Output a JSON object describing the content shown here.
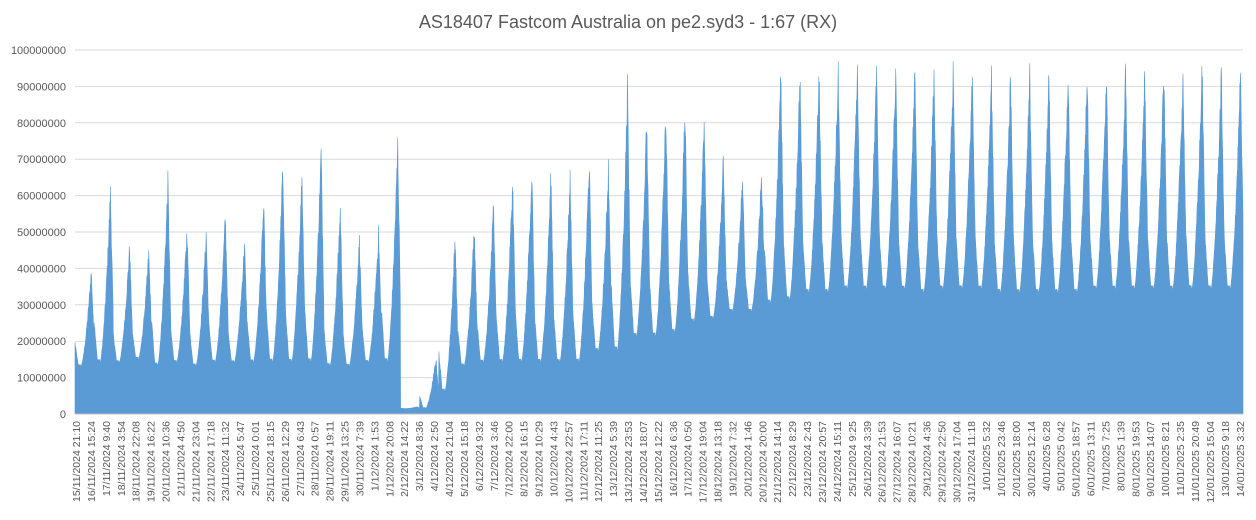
{
  "chart_data": {
    "type": "area",
    "title": "AS18407 Fastcom Australia on pe2.syd3 - 1:67 (RX)",
    "xlabel": "",
    "ylabel": "",
    "ylim": [
      0,
      100000000
    ],
    "y_ticks": [
      "0",
      "10000000",
      "20000000",
      "30000000",
      "40000000",
      "50000000",
      "60000000",
      "70000000",
      "80000000",
      "90000000",
      "100000000"
    ],
    "x_tick_labels": [
      "15/11/2024 21:10",
      "16/11/2024 15:24",
      "17/11/2024 9:40",
      "18/11/2024 3:54",
      "18/11/2024 22:08",
      "19/11/2024 16:22",
      "20/11/2024 10:36",
      "21/11/2024 4:50",
      "21/11/2024 23:04",
      "22/11/2024 17:18",
      "23/11/2024 11:32",
      "24/11/2024 5:47",
      "25/11/2024 0:01",
      "25/11/2024 18:15",
      "26/11/2024 12:29",
      "27/11/2024 6:43",
      "28/11/2024 0:57",
      "28/11/2024 19:11",
      "29/11/2024 13:25",
      "30/11/2024 7:39",
      "1/12/2024 1:53",
      "1/12/2024 20:08",
      "2/12/2024 14:22",
      "3/12/2024 8:36",
      "4/12/2024 2:50",
      "4/12/2024 21:04",
      "5/12/2024 15:18",
      "6/12/2024 9:32",
      "7/12/2024 3:46",
      "7/12/2024 22:00",
      "8/12/2024 16:15",
      "9/12/2024 10:29",
      "10/12/2024 4:43",
      "10/12/2024 22:57",
      "11/12/2024 17:11",
      "12/12/2024 11:25",
      "13/12/2024 5:39",
      "13/12/2024 23:53",
      "14/12/2024 18:07",
      "15/12/2024 12:22",
      "16/12/2024 6:36",
      "17/12/2024 0:50",
      "17/12/2024 19:04",
      "18/12/2024 13:18",
      "19/12/2024 7:32",
      "20/12/2024 1:46",
      "20/12/2024 20:00",
      "21/12/2024 14:14",
      "22/12/2024 8:29",
      "23/12/2024 2:43",
      "23/12/2024 20:57",
      "24/12/2024 15:11",
      "25/12/2024 9:25",
      "26/12/2024 3:39",
      "26/12/2024 21:53",
      "27/12/2024 16:07",
      "28/12/2024 10:21",
      "29/12/2024 4:36",
      "29/12/2024 22:50",
      "30/12/2024 17:04",
      "31/12/2024 11:18",
      "1/01/2025 5:32",
      "1/01/2025 23:46",
      "2/01/2025 18:00",
      "3/01/2025 12:14",
      "4/01/2025 6:28",
      "5/01/2025 0:42",
      "5/01/2025 18:57",
      "6/01/2025 13:11",
      "7/01/2025 7:25",
      "8/01/2025 1:39",
      "8/01/2025 19:53",
      "9/01/2025 14:07",
      "10/01/2025 8:21",
      "11/01/2025 2:35",
      "11/01/2025 20:49",
      "12/01/2025 15:04",
      "13/01/2025 9:18",
      "14/01/2025 3:32"
    ],
    "daily_profile": [
      {
        "day": 1,
        "min": 13000000,
        "max": 41000000
      },
      {
        "day": 2,
        "min": 14000000,
        "max": 64000000
      },
      {
        "day": 3,
        "min": 14000000,
        "max": 48000000
      },
      {
        "day": 4,
        "min": 15000000,
        "max": 46000000
      },
      {
        "day": 5,
        "min": 13000000,
        "max": 67000000
      },
      {
        "day": 6,
        "min": 14000000,
        "max": 53000000
      },
      {
        "day": 7,
        "min": 13000000,
        "max": 52000000
      },
      {
        "day": 8,
        "min": 14000000,
        "max": 57000000
      },
      {
        "day": 9,
        "min": 14000000,
        "max": 49000000
      },
      {
        "day": 10,
        "min": 14000000,
        "max": 60000000
      },
      {
        "day": 11,
        "min": 14000000,
        "max": 71000000
      },
      {
        "day": 12,
        "min": 14000000,
        "max": 69000000
      },
      {
        "day": 13,
        "min": 14000000,
        "max": 76000000
      },
      {
        "day": 14,
        "min": 13000000,
        "max": 59000000
      },
      {
        "day": 15,
        "min": 13000000,
        "max": 50000000
      },
      {
        "day": 16,
        "min": 14000000,
        "max": 52000000
      },
      {
        "day": 17,
        "min": 14000000,
        "max": 78000000
      },
      {
        "day": 18,
        "min": 1500000,
        "max": 2000000
      },
      {
        "day": 19,
        "min": 1500000,
        "max": 16000000
      },
      {
        "day": 20,
        "min": 6000000,
        "max": 52000000
      },
      {
        "day": 21,
        "min": 13000000,
        "max": 54000000
      },
      {
        "day": 22,
        "min": 14000000,
        "max": 59000000
      },
      {
        "day": 23,
        "min": 14000000,
        "max": 67000000
      },
      {
        "day": 24,
        "min": 14000000,
        "max": 70000000
      },
      {
        "day": 25,
        "min": 14000000,
        "max": 69000000
      },
      {
        "day": 26,
        "min": 14000000,
        "max": 68000000
      },
      {
        "day": 27,
        "min": 14000000,
        "max": 73000000
      },
      {
        "day": 28,
        "min": 17000000,
        "max": 71000000
      },
      {
        "day": 29,
        "min": 17000000,
        "max": 94000000
      },
      {
        "day": 30,
        "min": 21000000,
        "max": 84000000
      },
      {
        "day": 31,
        "min": 21000000,
        "max": 87000000
      },
      {
        "day": 32,
        "min": 22000000,
        "max": 87000000
      },
      {
        "day": 33,
        "min": 25000000,
        "max": 83000000
      },
      {
        "day": 34,
        "min": 26000000,
        "max": 72000000
      },
      {
        "day": 35,
        "min": 28000000,
        "max": 67000000
      },
      {
        "day": 36,
        "min": 28000000,
        "max": 68000000
      },
      {
        "day": 37,
        "min": 30000000,
        "max": 97000000
      },
      {
        "day": 38,
        "min": 31000000,
        "max": 97000000
      },
      {
        "day": 39,
        "min": 33000000,
        "max": 97000000
      },
      {
        "day": 40,
        "min": 33000000,
        "max": 97000000
      },
      {
        "day": 41,
        "min": 34000000,
        "max": 97000000
      },
      {
        "day": 42,
        "min": 34000000,
        "max": 97000000
      },
      {
        "day": 43,
        "min": 34000000,
        "max": 97000000
      },
      {
        "day": 44,
        "min": 34000000,
        "max": 97000000
      },
      {
        "day": 45,
        "min": 33000000,
        "max": 97000000
      },
      {
        "day": 46,
        "min": 34000000,
        "max": 97000000
      },
      {
        "day": 47,
        "min": 34000000,
        "max": 97000000
      },
      {
        "day": 48,
        "min": 34000000,
        "max": 97000000
      },
      {
        "day": 49,
        "min": 33000000,
        "max": 97000000
      },
      {
        "day": 50,
        "min": 33000000,
        "max": 97000000
      },
      {
        "day": 51,
        "min": 33000000,
        "max": 97000000
      },
      {
        "day": 52,
        "min": 33000000,
        "max": 97000000
      },
      {
        "day": 53,
        "min": 33000000,
        "max": 97000000
      },
      {
        "day": 54,
        "min": 34000000,
        "max": 97000000
      },
      {
        "day": 55,
        "min": 34000000,
        "max": 97000000
      },
      {
        "day": 56,
        "min": 34000000,
        "max": 97000000
      },
      {
        "day": 57,
        "min": 34000000,
        "max": 97000000
      },
      {
        "day": 58,
        "min": 34000000,
        "max": 97000000
      },
      {
        "day": 59,
        "min": 34000000,
        "max": 99000000
      },
      {
        "day": 60,
        "min": 34000000,
        "max": 97000000
      },
      {
        "day": 61,
        "min": 34000000,
        "max": 97000000
      }
    ],
    "grid": true,
    "legend": "none",
    "series": [
      {
        "color": "#5B9BD5"
      }
    ]
  }
}
